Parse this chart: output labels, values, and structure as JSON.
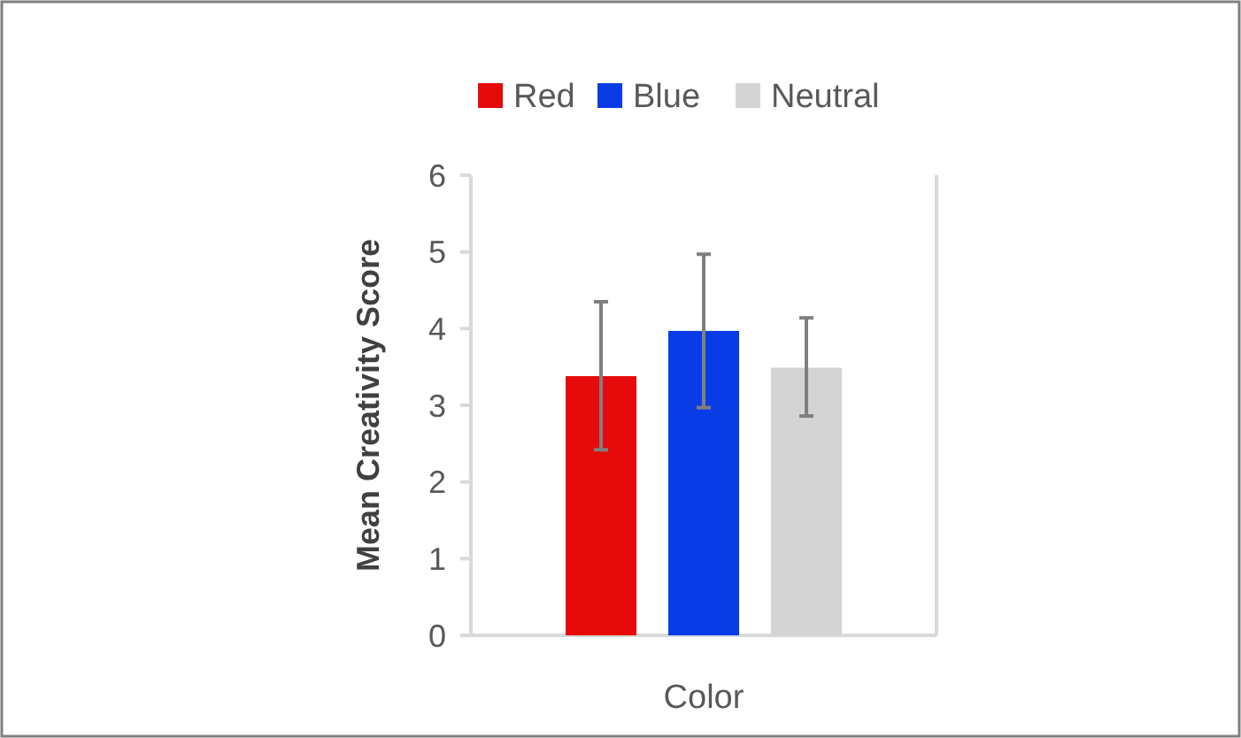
{
  "chart_data": {
    "type": "bar",
    "categories": [
      null
    ],
    "xlabel": "Color",
    "ylabel": "Mean Creativity  Score",
    "ylim": [
      0,
      6
    ],
    "yticks": [
      0,
      1,
      2,
      3,
      4,
      5,
      6
    ],
    "grid": false,
    "legend": "top",
    "series": [
      {
        "name": "Red",
        "color": "#e60a0a",
        "values": [
          3.38
        ],
        "errors": [
          [
            2.42,
            4.35
          ]
        ]
      },
      {
        "name": "Blue",
        "color": "#0a3ce6",
        "values": [
          3.97
        ],
        "errors": [
          [
            2.97,
            4.97
          ]
        ]
      },
      {
        "name": "Neutral",
        "color": "#d4d4d4",
        "values": [
          3.49
        ],
        "errors": [
          [
            2.86,
            4.14
          ]
        ]
      }
    ]
  }
}
